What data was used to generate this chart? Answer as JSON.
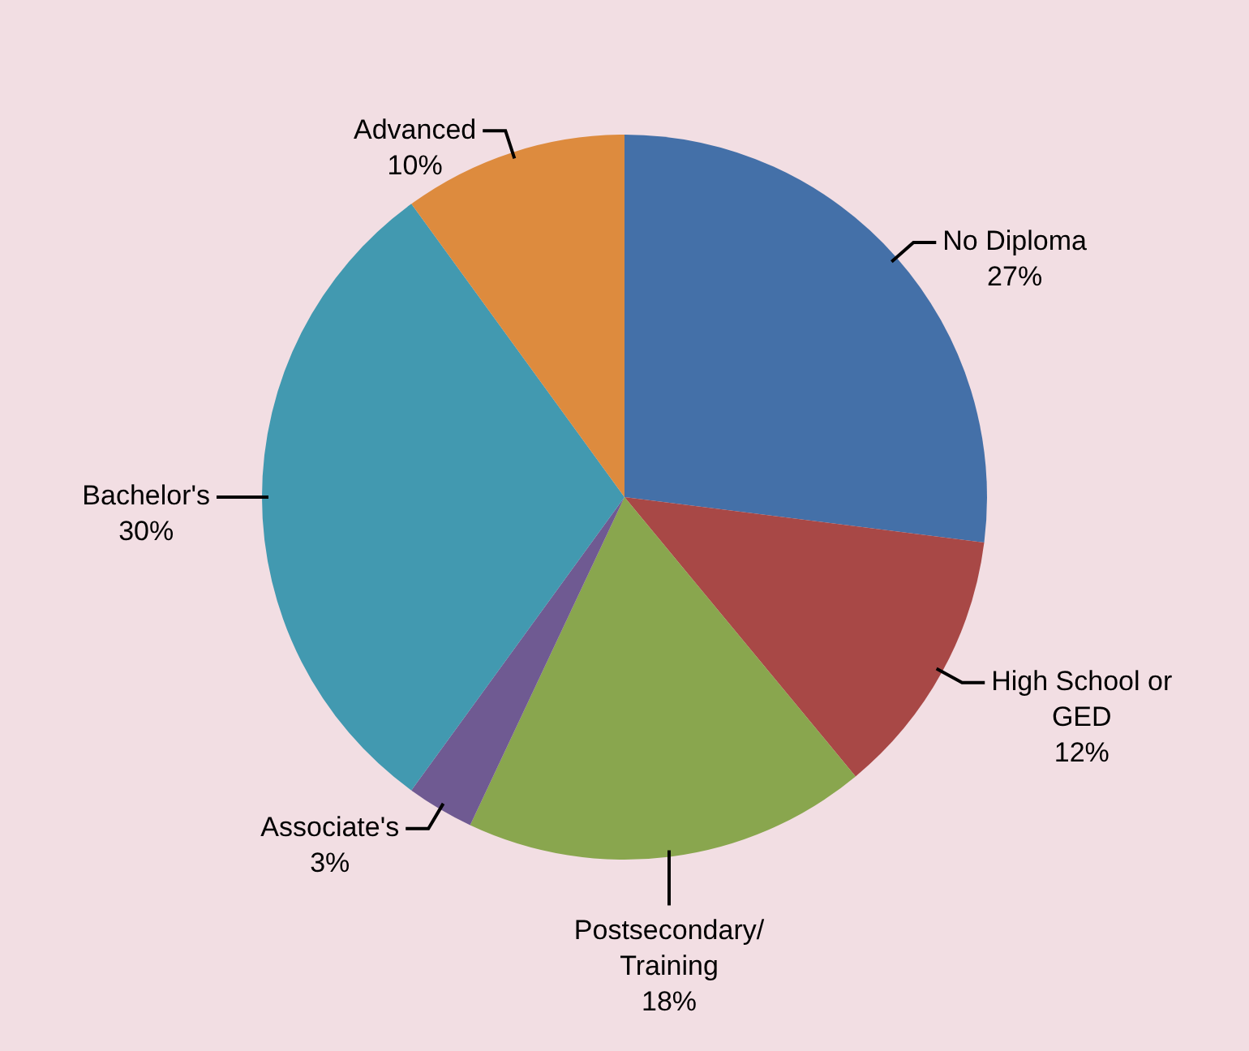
{
  "chart_data": {
    "type": "pie",
    "categories": [
      "No Diploma",
      "High School or GED",
      "Postsecondary/Training",
      "Associate's",
      "Bachelor's",
      "Advanced"
    ],
    "values": [
      27,
      12,
      18,
      3,
      30,
      10
    ],
    "value_labels": [
      "27%",
      "12%",
      "18%",
      "3%",
      "30%",
      "10%"
    ],
    "colors": [
      "#4470a8",
      "#a84846",
      "#89a64e",
      "#6f5a92",
      "#4299b0",
      "#dd8b3e"
    ],
    "legend": false
  }
}
